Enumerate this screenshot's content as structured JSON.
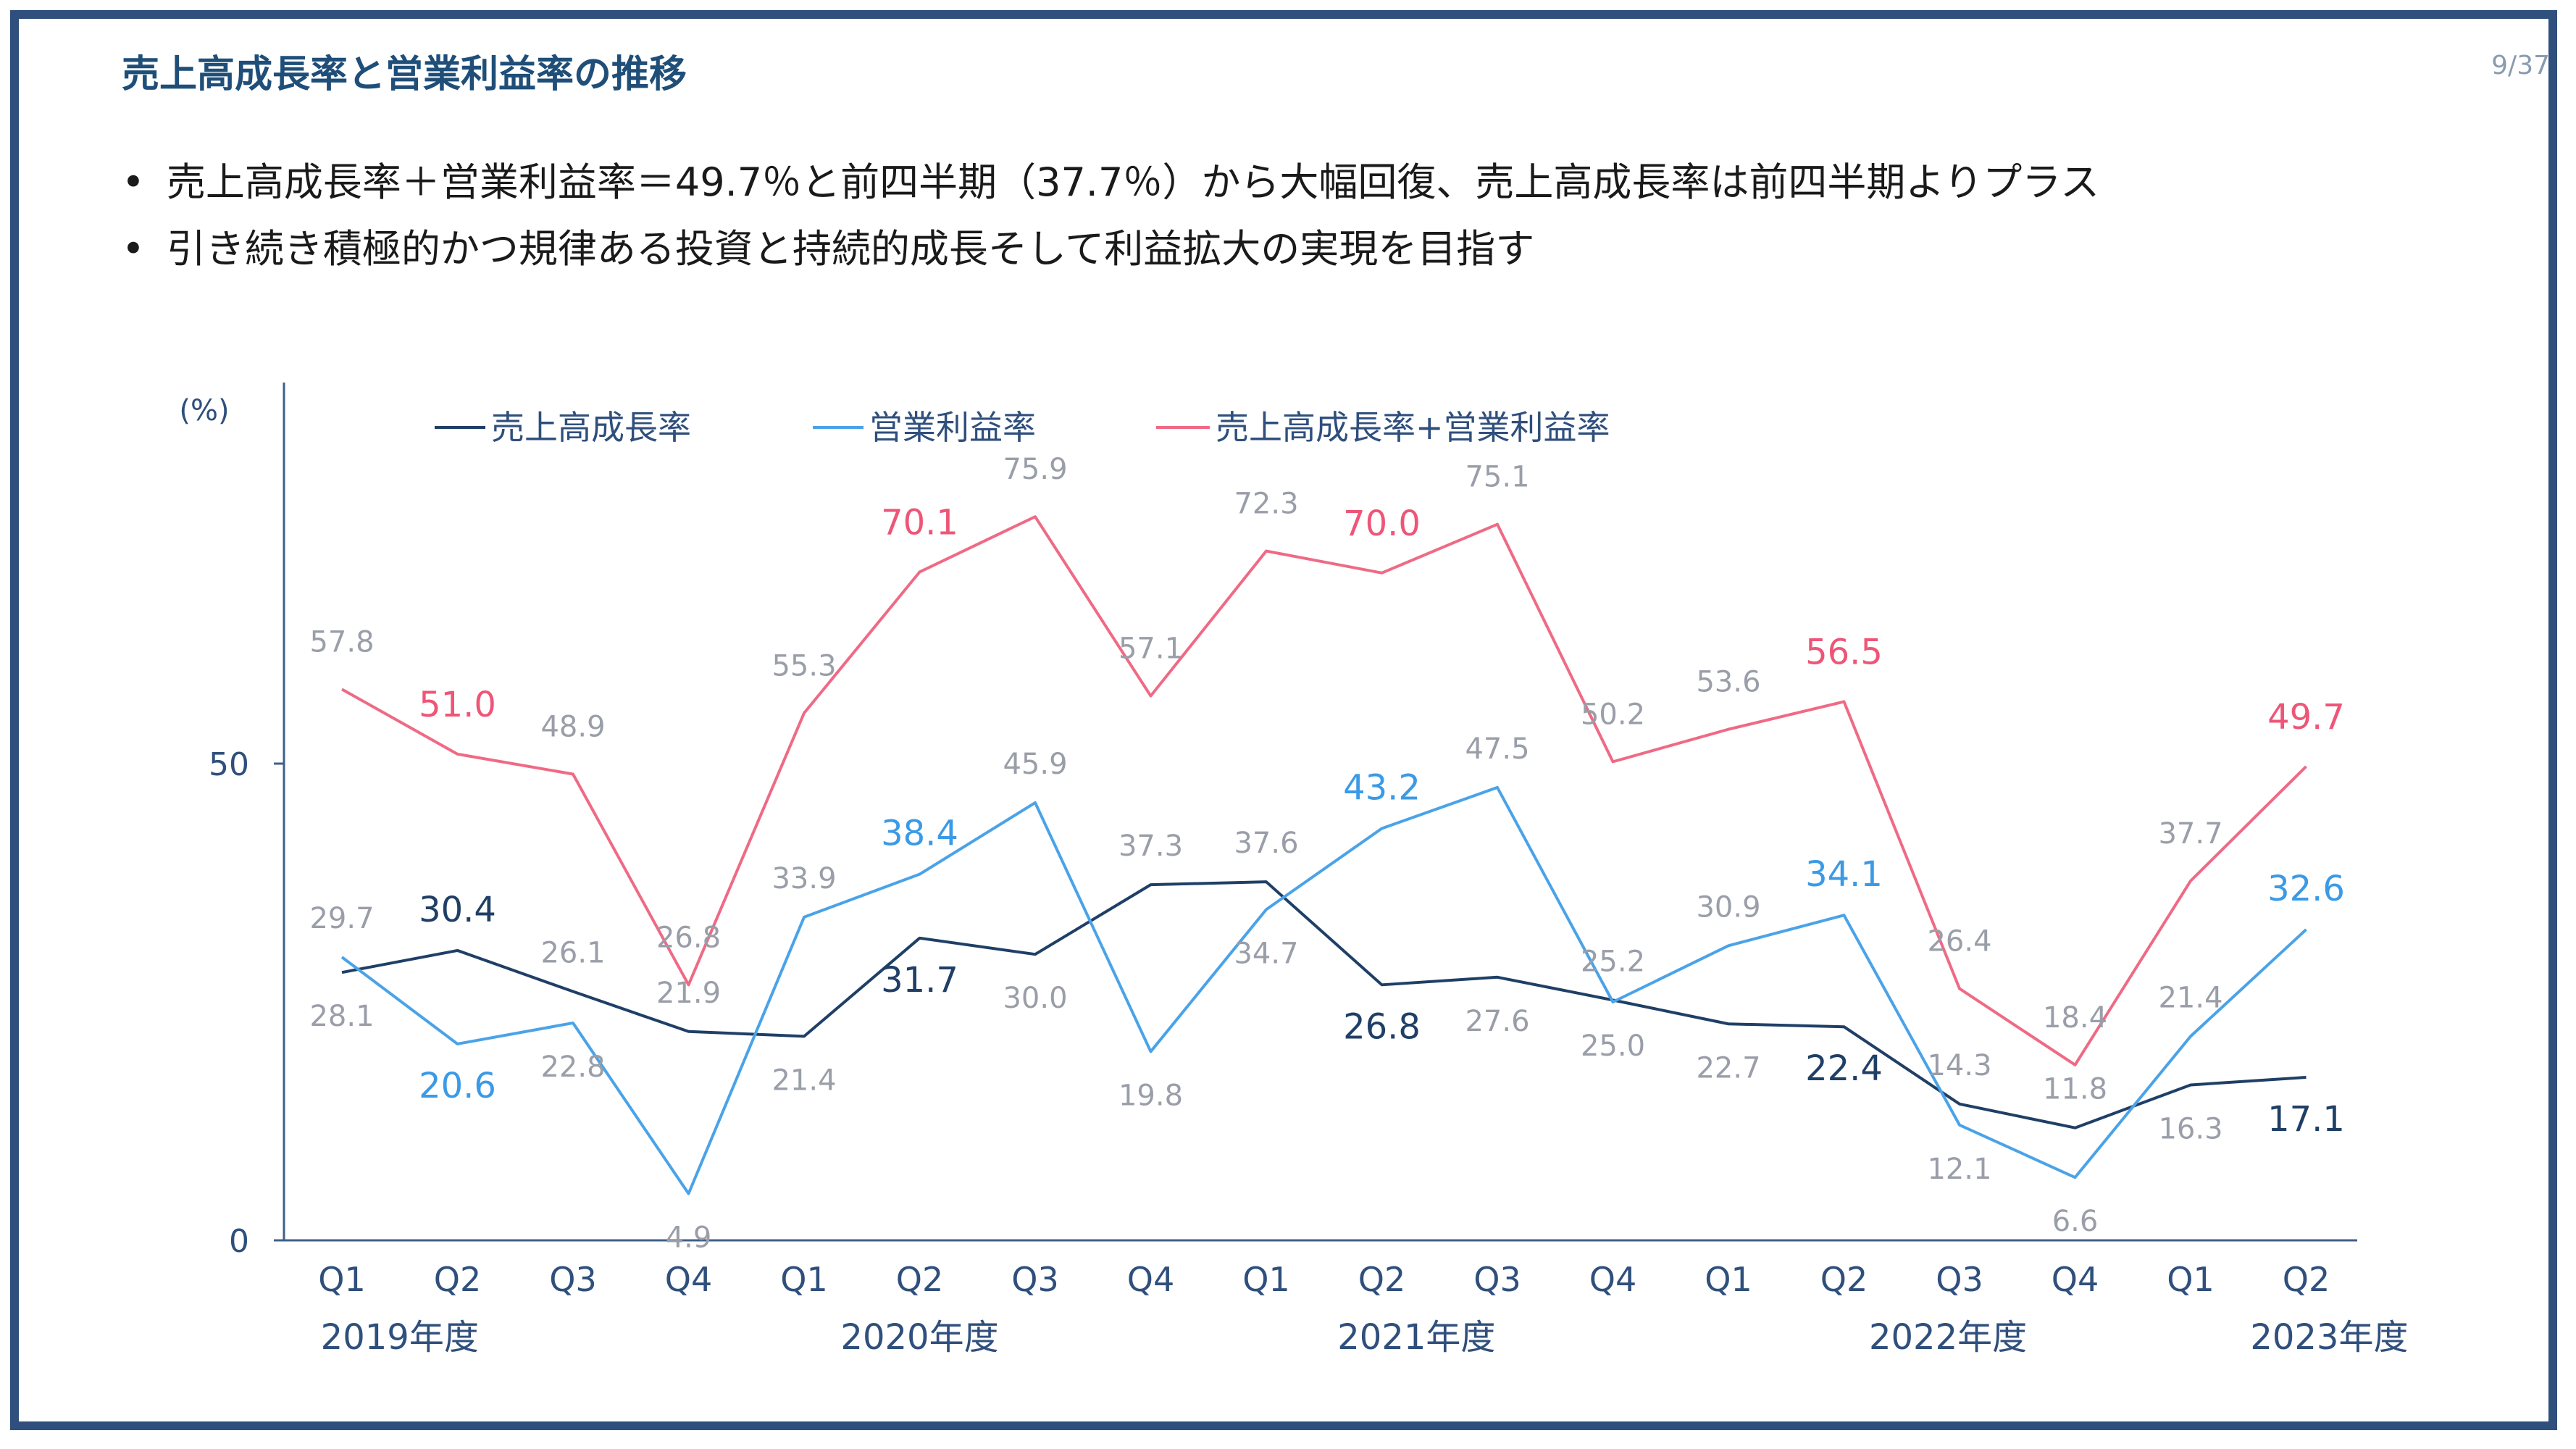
{
  "slide": {
    "title": "売上高成長率と営業利益率の推移",
    "page": "9/37",
    "bullets": [
      "売上高成長率＋営業利益率＝49.7％と前四半期（37.7％）から大幅回復、売上高成長率は前四半期よりプラス",
      "引き続き積極的かつ規律ある投資と持続的成長そして利益拡大の実現を目指す"
    ]
  },
  "chart_data": {
    "type": "line",
    "ylabel": "(%)",
    "yticks": [
      "0",
      "50"
    ],
    "ylim": [
      0,
      90
    ],
    "categories": [
      "Q1",
      "Q2",
      "Q3",
      "Q4",
      "Q1",
      "Q2",
      "Q3",
      "Q4",
      "Q1",
      "Q2",
      "Q3",
      "Q4",
      "Q1",
      "Q2",
      "Q3",
      "Q4",
      "Q1",
      "Q2"
    ],
    "year_labels": [
      {
        "label": "2019年度",
        "index": 0.5
      },
      {
        "label": "2020年度",
        "index": 5.0
      },
      {
        "label": "2021年度",
        "index": 9.3
      },
      {
        "label": "2022年度",
        "index": 13.9
      },
      {
        "label": "2023年度",
        "index": 17.2
      }
    ],
    "legend_position": "top-left",
    "series": [
      {
        "name": "売上高成長率",
        "color": "#1f3f66",
        "values": [
          28.1,
          30.4,
          26.1,
          21.9,
          21.4,
          31.7,
          30.0,
          37.3,
          37.6,
          26.8,
          27.6,
          25.2,
          22.7,
          22.4,
          14.3,
          11.8,
          16.3,
          17.1
        ],
        "emphasis_color": "#1f3f66"
      },
      {
        "name": "営業利益率",
        "color": "#4aa3e8",
        "values": [
          29.7,
          20.6,
          22.8,
          4.9,
          33.9,
          38.4,
          45.9,
          19.8,
          34.7,
          43.2,
          47.5,
          25.0,
          30.9,
          34.1,
          12.1,
          6.6,
          21.4,
          32.6
        ],
        "emphasis_color": "#3b9ae6"
      },
      {
        "name": "売上高成長率+営業利益率",
        "color": "#ef6a85",
        "values": [
          57.8,
          51.0,
          48.9,
          26.8,
          55.3,
          70.1,
          75.9,
          57.1,
          72.3,
          70.0,
          75.1,
          50.2,
          53.6,
          56.5,
          26.4,
          18.4,
          37.7,
          49.7
        ],
        "emphasis_color": "#ee5577"
      }
    ],
    "data_labels": {
      "label_color": "#9a9ea8",
      "label_color_dark": "#7b7f88"
    }
  }
}
